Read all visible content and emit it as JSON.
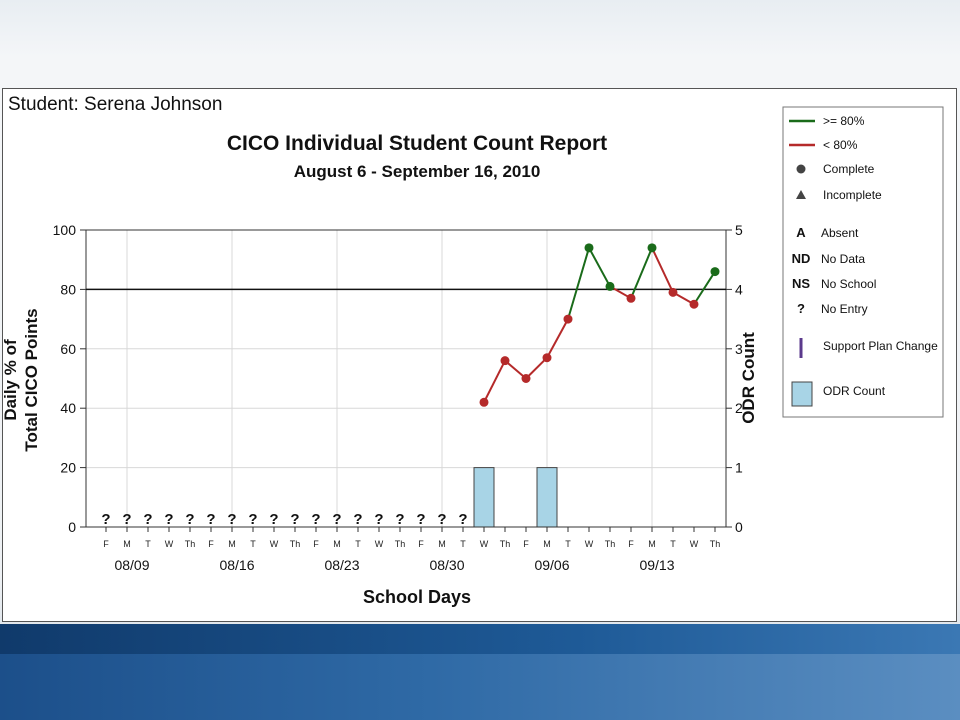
{
  "student_line": "Student: Serena Johnson",
  "chart_data": {
    "type": "line",
    "title": "CICO Individual Student Count Report",
    "subtitle": "August 6 - September 16, 2010",
    "xlabel": "School Days",
    "ylabel_lines": [
      "Daily % of",
      "Total CICO Points"
    ],
    "ylabel_right": "ODR Count",
    "ylim": [
      0,
      100
    ],
    "yticks": [
      "0",
      "20",
      "40",
      "60",
      "80",
      "100"
    ],
    "y2lim": [
      0,
      5
    ],
    "y2ticks": [
      "0",
      "1",
      "2",
      "3",
      "4",
      "5"
    ],
    "goal_line": 80,
    "days": [
      "F",
      "M",
      "T",
      "W",
      "Th",
      "F",
      "M",
      "T",
      "W",
      "Th",
      "F",
      "M",
      "T",
      "W",
      "Th",
      "F",
      "M",
      "T",
      "W",
      "Th",
      "F",
      "M",
      "T",
      "W",
      "Th",
      "F",
      "M",
      "T",
      "W",
      "Th"
    ],
    "week_labels": [
      {
        "day_index": 1,
        "label": "08/09"
      },
      {
        "day_index": 6,
        "label": "08/16"
      },
      {
        "day_index": 11,
        "label": "08/23"
      },
      {
        "day_index": 16,
        "label": "08/30"
      },
      {
        "day_index": 21,
        "label": "09/06"
      },
      {
        "day_index": 26,
        "label": "09/13"
      }
    ],
    "no_entry_marker": "?",
    "no_entry_days": [
      0,
      1,
      2,
      3,
      4,
      5,
      6,
      7,
      8,
      9,
      10,
      11,
      12,
      13,
      14,
      15,
      16,
      17
    ],
    "points": [
      {
        "day_index": 18,
        "value": 42
      },
      {
        "day_index": 19,
        "value": 56
      },
      {
        "day_index": 20,
        "value": 50
      },
      {
        "day_index": 21,
        "value": 57
      },
      {
        "day_index": 22,
        "value": 70
      },
      {
        "day_index": 23,
        "value": 94
      },
      {
        "day_index": 24,
        "value": 81
      },
      {
        "day_index": 25,
        "value": 77
      },
      {
        "day_index": 26,
        "value": 94
      },
      {
        "day_index": 27,
        "value": 79
      },
      {
        "day_index": 28,
        "value": 75
      },
      {
        "day_index": 29,
        "value": 86
      }
    ],
    "odr_counts": [
      {
        "day_index": 18,
        "count": 1
      },
      {
        "day_index": 21,
        "count": 1
      }
    ],
    "colors": {
      "above": "#1a6b1a",
      "below": "#b52a2a",
      "odr_fill": "#a8d4e6",
      "grid": "#d8d8d8",
      "support_plan": "#5b3a8c"
    },
    "legend": {
      "placement": "right",
      "items": [
        {
          "kind": "line",
          "color": "#1a6b1a",
          "label": ">= 80%"
        },
        {
          "kind": "line",
          "color": "#b52a2a",
          "label": "< 80%"
        },
        {
          "kind": "circle",
          "label": "Complete"
        },
        {
          "kind": "triangle",
          "label": "Incomplete"
        },
        {
          "kind": "code",
          "code": "A",
          "label": "Absent"
        },
        {
          "kind": "code",
          "code": "ND",
          "label": "No Data"
        },
        {
          "kind": "code",
          "code": "NS",
          "label": "No School"
        },
        {
          "kind": "code",
          "code": "?",
          "label": "No Entry"
        },
        {
          "kind": "vbar",
          "label": "Support Plan Change"
        },
        {
          "kind": "box",
          "label": "ODR Count"
        }
      ]
    }
  }
}
